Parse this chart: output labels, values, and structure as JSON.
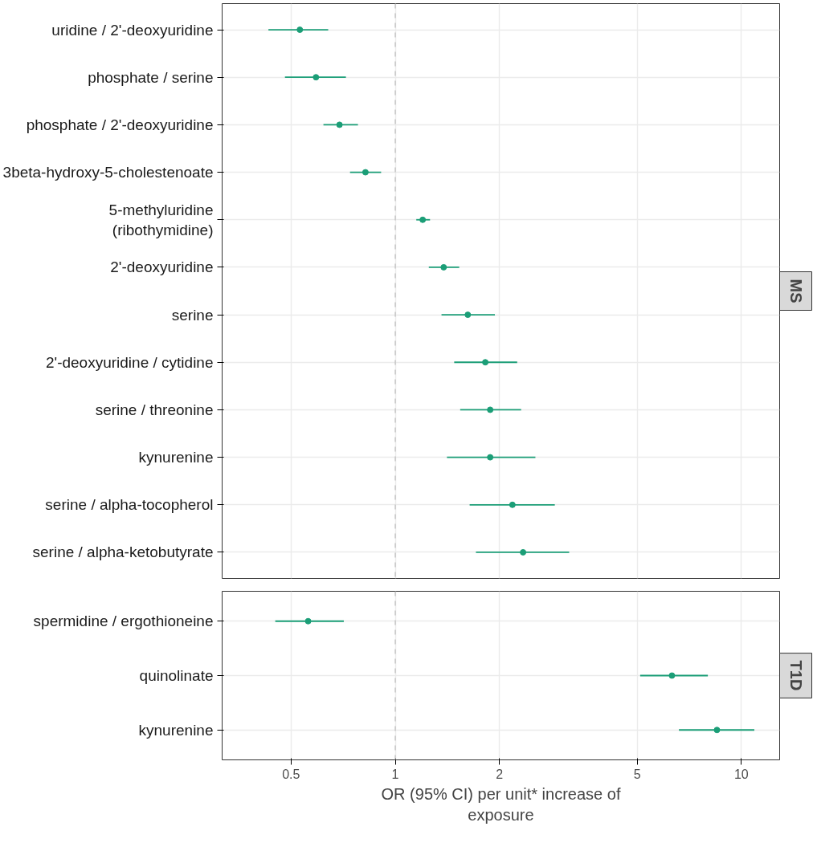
{
  "chart_data": [
    {
      "type": "scatter",
      "title": "MS",
      "orientation": "horizontal",
      "log": "x",
      "grid": true,
      "marker": "circle",
      "tick_labels": "y",
      "color": "#1b9e77",
      "categories": [
        "uridine / 2'-deoxyuridine",
        "phosphate / serine",
        "phosphate / 2'-deoxyuridine",
        "3beta-hydroxy-5-cholestenoate",
        "5-methyluridine\n(ribothymidine)",
        "2'-deoxyuridine",
        "serine",
        "2'-deoxyuridine / cytidine",
        "serine / threonine",
        "kynurenine",
        "serine / alpha-tocopherol",
        "serine / alpha-ketobutyrate"
      ],
      "values": [
        0.53,
        0.59,
        0.69,
        0.82,
        1.2,
        1.38,
        1.62,
        1.82,
        1.88,
        1.88,
        2.18,
        2.34
      ],
      "errors": [
        [
          0.43,
          0.64
        ],
        [
          0.48,
          0.72
        ],
        [
          0.62,
          0.78
        ],
        [
          0.74,
          0.91
        ],
        [
          1.15,
          1.26
        ],
        [
          1.25,
          1.53
        ],
        [
          1.36,
          1.94
        ],
        [
          1.48,
          2.25
        ],
        [
          1.54,
          2.31
        ],
        [
          1.41,
          2.54
        ],
        [
          1.64,
          2.89
        ],
        [
          1.71,
          3.18
        ]
      ],
      "xlim": [
        0.316,
        12.9
      ],
      "xticks": [
        0.5,
        1,
        2,
        5,
        10
      ],
      "ref_lines": [
        {
          "axis": "x",
          "value": 1,
          "color": "#bbbbbb",
          "line_style": "dashed"
        }
      ]
    },
    {
      "type": "scatter",
      "title": "T1D",
      "orientation": "horizontal",
      "log": "x",
      "grid": true,
      "marker": "circle",
      "color": "#1b9e77",
      "categories": [
        "spermidine / ergothioneine",
        "quinolinate",
        "kynurenine"
      ],
      "values": [
        0.56,
        6.3,
        8.5
      ],
      "errors": [
        [
          0.45,
          0.71
        ],
        [
          5.1,
          8.0
        ],
        [
          6.6,
          10.9
        ]
      ],
      "xlim": [
        0.316,
        12.9
      ],
      "xticks": [
        0.5,
        1,
        2,
        5,
        10
      ],
      "xlabel": "OR (95% CI) per unit* increase of\nexposure",
      "ref_lines": [
        {
          "axis": "x",
          "value": 1,
          "color": "#bbbbbb",
          "line_style": "dashed"
        }
      ]
    }
  ]
}
